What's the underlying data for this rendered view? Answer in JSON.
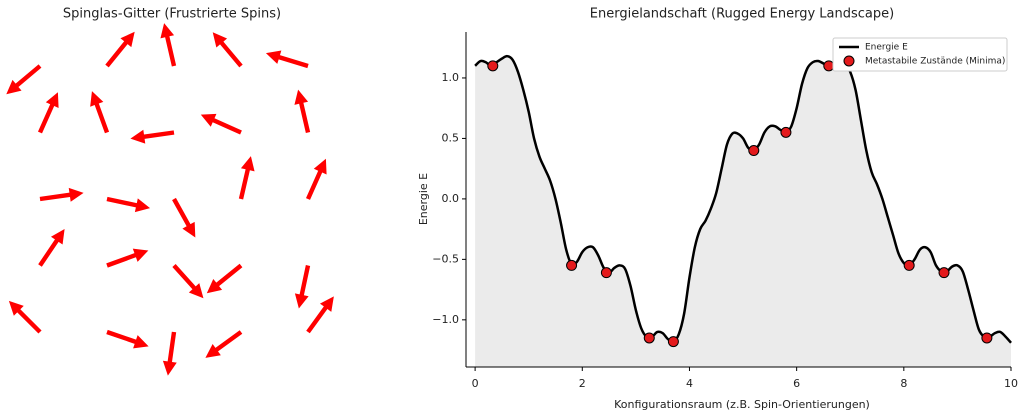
{
  "chart_data": [
    {
      "type": "quiver",
      "title": "Spinglas-Gitter (Frustrierte Spins)",
      "color": "#ff0000",
      "x": [
        0,
        1,
        2,
        3,
        4,
        0,
        1,
        2,
        3,
        4,
        0,
        1,
        2,
        3,
        4,
        0,
        1,
        2,
        3,
        4,
        0,
        1,
        2,
        3,
        4
      ],
      "y": [
        4,
        4,
        4,
        4,
        4,
        3,
        3,
        3,
        3,
        3,
        2,
        2,
        2,
        2,
        2,
        1,
        1,
        1,
        1,
        1,
        0,
        0,
        0,
        0,
        0
      ],
      "angles": [
        220,
        51,
        103,
        130,
        163,
        66,
        110,
        188,
        156,
        103,
        8,
        348,
        299,
        77,
        66,
        56,
        20,
        312,
        219,
        258,
        135,
        341,
        262,
        216,
        54
      ]
    },
    {
      "type": "line",
      "title": "Energielandschaft (Rugged Energy Landscape)",
      "xlabel": "Konfigurationsraum (z.B. Spin-Orientierungen)",
      "ylabel": "Energie E",
      "xlim": [
        -0.17,
        10
      ],
      "ylim": [
        -1.39,
        1.38
      ],
      "xticks": [
        0,
        2,
        4,
        6,
        8,
        10
      ],
      "yticks": [
        {
          "value": -1.0,
          "label": "−1.0"
        },
        {
          "value": -0.5,
          "label": "−0.5"
        },
        {
          "value": 0.0,
          "label": "0.0"
        },
        {
          "value": 0.5,
          "label": "0.5"
        },
        {
          "value": 1.0,
          "label": "1.0"
        }
      ],
      "fill_color": "#ebebeb",
      "legend": "upper right",
      "x": [
        0,
        0.1,
        0.2,
        0.3,
        0.4,
        0.5,
        0.6,
        0.7,
        0.8,
        0.9,
        1,
        1.1,
        1.2,
        1.3,
        1.4,
        1.5,
        1.6,
        1.7,
        1.8,
        1.9,
        2,
        2.1,
        2.2,
        2.3,
        2.4,
        2.5,
        2.6,
        2.7,
        2.8,
        2.9,
        3,
        3.1,
        3.2,
        3.3,
        3.4,
        3.5,
        3.6,
        3.7,
        3.8,
        3.9,
        4,
        4.1,
        4.2,
        4.3,
        4.4,
        4.5,
        4.6,
        4.7,
        4.8,
        4.9,
        5,
        5.1,
        5.2,
        5.3,
        5.4,
        5.5,
        5.6,
        5.7,
        5.8,
        5.9,
        6,
        6.1,
        6.2,
        6.3,
        6.4,
        6.5,
        6.6,
        6.7,
        6.8,
        6.9,
        7,
        7.1,
        7.2,
        7.3,
        7.4,
        7.5,
        7.6,
        7.7,
        7.8,
        7.9,
        8,
        8.1,
        8.2,
        8.3,
        8.4,
        8.5,
        8.6,
        8.7,
        8.8,
        8.9,
        9,
        9.1,
        9.2,
        9.3,
        9.4,
        9.5,
        9.6,
        9.7,
        9.8,
        9.9,
        10
      ],
      "series": [
        {
          "name": "Energie E",
          "color": "#000000",
          "values": [
            1.1,
            1.14,
            1.13,
            1.1,
            1.13,
            1.16,
            1.18,
            1.15,
            1.05,
            0.9,
            0.72,
            0.5,
            0.35,
            0.25,
            0.15,
            0.0,
            -0.2,
            -0.42,
            -0.54,
            -0.52,
            -0.44,
            -0.4,
            -0.4,
            -0.47,
            -0.57,
            -0.61,
            -0.57,
            -0.55,
            -0.58,
            -0.72,
            -0.92,
            -1.07,
            -1.14,
            -1.14,
            -1.1,
            -1.11,
            -1.16,
            -1.18,
            -1.12,
            -0.95,
            -0.65,
            -0.4,
            -0.25,
            -0.18,
            -0.08,
            0.05,
            0.25,
            0.45,
            0.54,
            0.54,
            0.5,
            0.42,
            0.4,
            0.45,
            0.55,
            0.6,
            0.6,
            0.57,
            0.55,
            0.6,
            0.75,
            0.95,
            1.08,
            1.13,
            1.14,
            1.12,
            1.1,
            1.12,
            1.14,
            1.12,
            1.05,
            0.9,
            0.65,
            0.4,
            0.22,
            0.12,
            0.0,
            -0.15,
            -0.3,
            -0.45,
            -0.53,
            -0.55,
            -0.5,
            -0.42,
            -0.4,
            -0.44,
            -0.55,
            -0.6,
            -0.6,
            -0.56,
            -0.55,
            -0.6,
            -0.75,
            -0.92,
            -1.08,
            -1.14,
            -1.14,
            -1.11,
            -1.1,
            -1.14,
            -1.19
          ]
        },
        {
          "name": "Metastabile Zustände (Minima)",
          "type": "scatter",
          "color": "#e41a1c",
          "x": [
            0.33,
            1.8,
            2.45,
            3.25,
            3.7,
            5.2,
            5.8,
            6.6,
            8.1,
            8.75,
            9.55
          ],
          "values": [
            1.1,
            -0.55,
            -0.61,
            -1.15,
            -1.18,
            0.4,
            0.55,
            1.1,
            -0.55,
            -0.61,
            -1.15
          ]
        }
      ]
    }
  ]
}
